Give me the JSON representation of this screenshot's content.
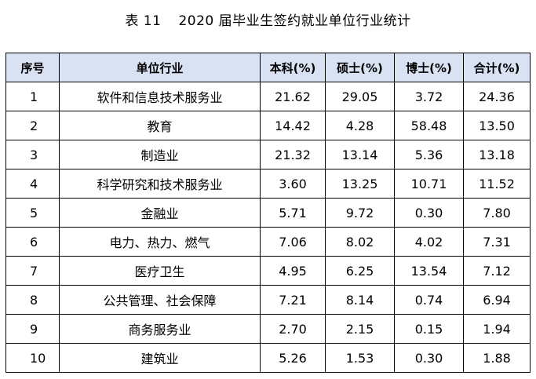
{
  "caption": {
    "number": "表 11",
    "title": "2020 届毕业生签约就业单位行业统计"
  },
  "table": {
    "headers": [
      "序号",
      "单位行业",
      "本科(%)",
      "硕士(%)",
      "博士(%)",
      "合计(%)"
    ],
    "rows": [
      [
        "1",
        "软件和信息技术服务业",
        "21.62",
        "29.05",
        "3.72",
        "24.36"
      ],
      [
        "2",
        "教育",
        "14.42",
        "4.28",
        "58.48",
        "13.50"
      ],
      [
        "3",
        "制造业",
        "21.32",
        "13.14",
        "5.36",
        "13.18"
      ],
      [
        "4",
        "科学研究和技术服务业",
        "3.60",
        "13.25",
        "10.71",
        "11.52"
      ],
      [
        "5",
        "金融业",
        "5.71",
        "9.72",
        "0.30",
        "7.80"
      ],
      [
        "6",
        "电力、热力、燃气",
        "7.06",
        "8.02",
        "4.02",
        "7.31"
      ],
      [
        "7",
        "医疗卫生",
        "4.95",
        "6.25",
        "13.54",
        "7.12"
      ],
      [
        "8",
        "公共管理、社会保障",
        "7.21",
        "8.14",
        "0.74",
        "6.94"
      ],
      [
        "9",
        "商务服务业",
        "2.70",
        "2.15",
        "0.15",
        "1.94"
      ],
      [
        "10",
        "建筑业",
        "5.26",
        "1.53",
        "0.30",
        "1.88"
      ]
    ]
  },
  "colors": {
    "header_background": "#d9e2f3",
    "border": "#000000"
  }
}
